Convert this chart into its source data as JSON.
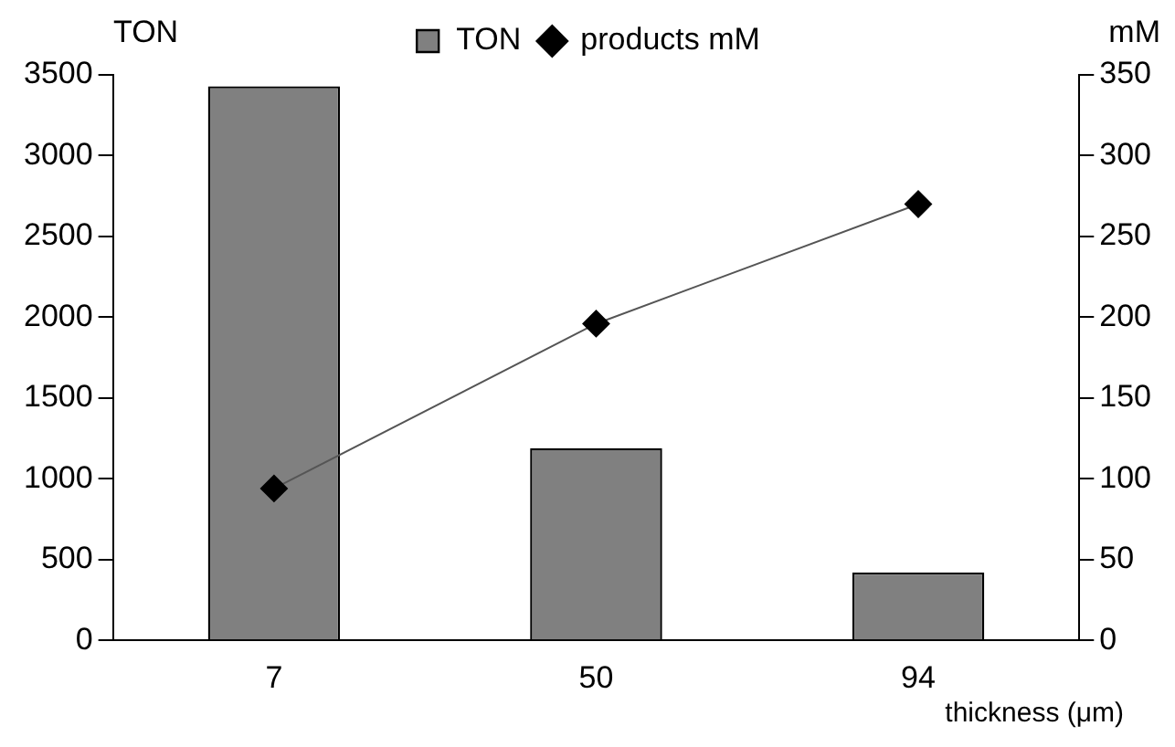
{
  "chart_data": {
    "type": "bar",
    "xlabel": "thickness (μm)",
    "ylabel": "TON",
    "y2label": "mM",
    "categories": [
      "7",
      "50",
      "94"
    ],
    "series": [
      {
        "name": "TON",
        "color": "#808080",
        "values": [
          3430,
          1190,
          420
        ]
      },
      {
        "name": "products mM",
        "type": "line",
        "axis": "y2",
        "color": "#000000",
        "marker": "diamond",
        "values": [
          94,
          196,
          270
        ]
      }
    ],
    "ylim": [
      0,
      3500
    ],
    "yticks": [
      0,
      500,
      1000,
      1500,
      2000,
      2500,
      3000,
      3500
    ],
    "y2lim": [
      0,
      350
    ],
    "y2ticks": [
      0,
      50,
      100,
      150,
      200,
      250,
      300,
      350
    ],
    "grid": false,
    "legend": "top"
  }
}
